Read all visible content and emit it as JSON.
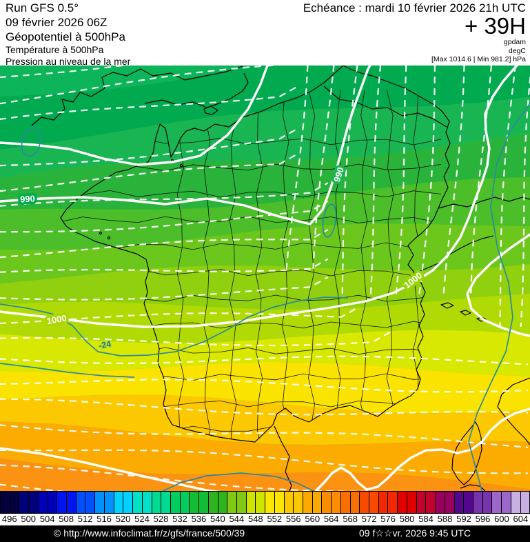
{
  "header": {
    "left": {
      "line1": "Run GFS 0.5°",
      "line2": "09 février 2026 06Z",
      "line3": "Géopotentiel à 500hPa",
      "line4": "Température à 500hPa",
      "line5": "Pression au niveau de la mer"
    },
    "right": {
      "echeance": "Echéance : mardi 10 février 2026 21h UTC",
      "lead_time": "+ 39H",
      "unit_geopotential": "gpdam",
      "unit_temperature": "degC",
      "pressure_range": "[Max 1014.6 | Min 981.2] hPa"
    }
  },
  "map": {
    "pressure_labels": [
      "990",
      "990",
      "1000",
      "1000"
    ],
    "temperature_labels": [
      "-24"
    ],
    "isobar_color": "#ffffff",
    "temperature_contour_color": "#2a8a9e",
    "border_color": "#000000",
    "band_colors": [
      "#0cb45a",
      "#01a94f",
      "#19b553",
      "#2ab33b",
      "#4cbe2a",
      "#6cc71c",
      "#90d00e",
      "#b0da04",
      "#d8e800",
      "#fbe300",
      "#fcc900",
      "#fcab00",
      "#fb9212"
    ]
  },
  "colorbar": {
    "values": [
      "496",
      "500",
      "504",
      "508",
      "512",
      "516",
      "520",
      "524",
      "528",
      "532",
      "536",
      "540",
      "544",
      "548",
      "552",
      "556",
      "560",
      "564",
      "568",
      "572",
      "576",
      "580",
      "584",
      "588",
      "592",
      "596",
      "600",
      "604"
    ],
    "colors": [
      "#02023d",
      "#000078",
      "#0000b9",
      "#0014f0",
      "#0050ff",
      "#0091ff",
      "#00d2ff",
      "#00e1c8",
      "#00d991",
      "#00cd5f",
      "#12bd35",
      "#2eb41e",
      "#80c814",
      "#d0e400",
      "#fae600",
      "#fcc800",
      "#fcaa00",
      "#fc8c00",
      "#fa6e00",
      "#f94b00",
      "#f32800",
      "#e10000",
      "#c4002f",
      "#97005e",
      "#55068e",
      "#7634ac",
      "#9d66c9",
      "#c9b0e2"
    ]
  },
  "footer": {
    "copyright": "© http://www.infoclimat.fr/z/gfs/france/500/39",
    "generated": "09 f☆☆vr. 2026  9:45 UTC"
  }
}
